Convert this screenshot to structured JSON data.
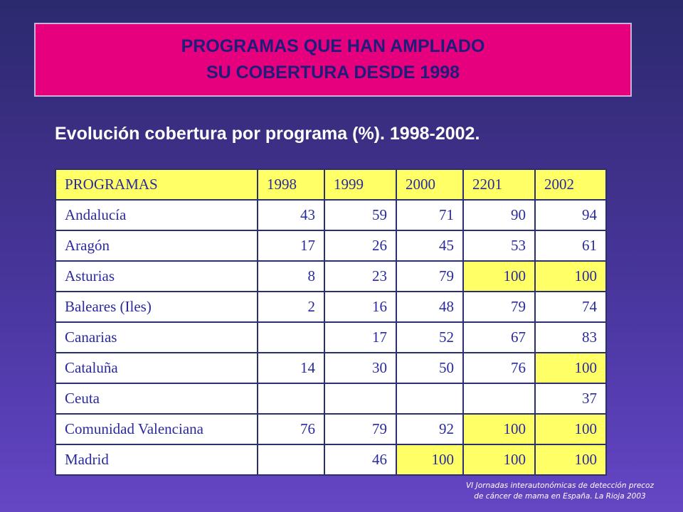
{
  "title": {
    "line1": "PROGRAMAS QUE HAN AMPLIADO",
    "line2": "SU COBERTURA DESDE 1998"
  },
  "subtitle": "Evolución cobertura por programa (%). 1998-2002.",
  "table": {
    "headers": [
      "PROGRAMAS",
      "1998",
      "1999",
      "2000",
      "2201",
      "2002"
    ],
    "rows": [
      [
        "Andalucía",
        "43",
        "59",
        "71",
        "90",
        "94"
      ],
      [
        "Aragón",
        "17",
        "26",
        "45",
        "53",
        "61"
      ],
      [
        "Asturias",
        "8",
        "23",
        "79",
        "100",
        "100"
      ],
      [
        "Baleares (Iles)",
        "2",
        "16",
        "48",
        "79",
        "74"
      ],
      [
        "Canarias",
        "",
        "17",
        "52",
        "67",
        "83"
      ],
      [
        "Cataluña",
        "14",
        "30",
        "50",
        "76",
        "100"
      ],
      [
        "Ceuta",
        "",
        "",
        "",
        "",
        "37"
      ],
      [
        "Comunidad Valenciana",
        "76",
        "79",
        "92",
        "100",
        "100"
      ],
      [
        "Madrid",
        "",
        "46",
        "100",
        "100",
        "100"
      ]
    ]
  },
  "colors": {
    "title_bg": "#e6007e",
    "title_text": "#1e1e7a",
    "highlight": "#ffff66",
    "cell_text": "#2a2a9e"
  },
  "footer": {
    "line1": "VI Jornadas interautonómicas de detección precoz",
    "line2": "de cáncer de mama en España. La Rioja 2003"
  }
}
